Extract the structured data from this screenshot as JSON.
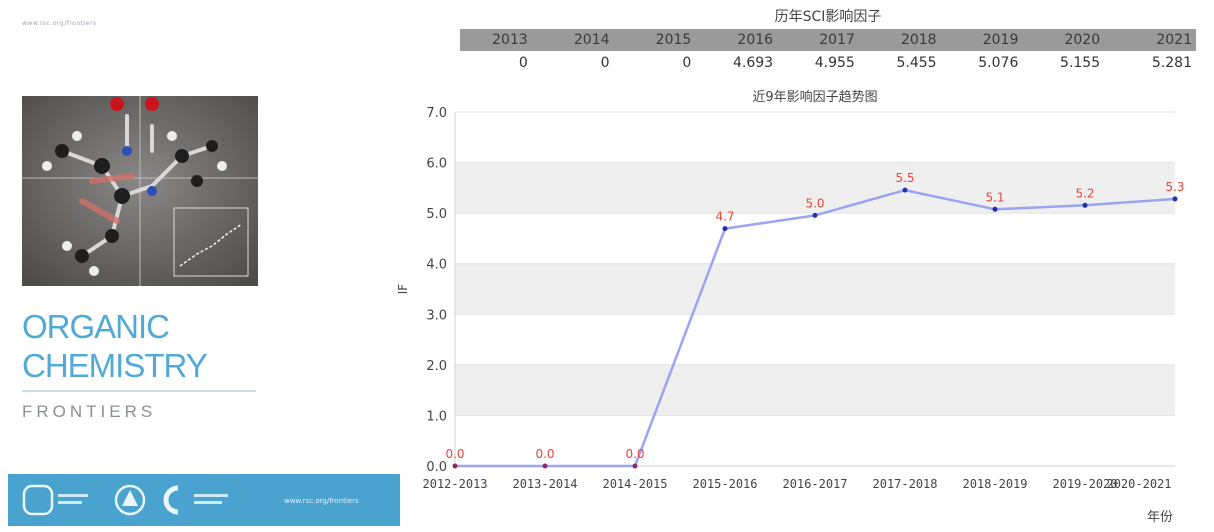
{
  "cover": {
    "tiny_text": "www.rsc.org/frontiers",
    "title_line1": "ORGANIC",
    "title_line2": "CHEMISTRY",
    "subtitle": "FRONTIERS",
    "colors": {
      "title": "#52a9d6",
      "footer": "#4aa3cf"
    }
  },
  "table": {
    "title": "历年SCI影响因子",
    "years": [
      "2013",
      "2014",
      "2015",
      "2016",
      "2017",
      "2018",
      "2019",
      "2020",
      "2021"
    ],
    "values": [
      "0",
      "0",
      "0",
      "4.693",
      "4.955",
      "5.455",
      "5.076",
      "5.155",
      "5.281"
    ]
  },
  "chart_data": {
    "type": "line",
    "title": "近9年影响因子趋势图",
    "xlabel": "年份",
    "ylabel": "IF",
    "categories": [
      "2012-2013",
      "2013-2014",
      "2014-2015",
      "2015-2016",
      "2016-2017",
      "2017-2018",
      "2018-2019",
      "2019-2020",
      "2020-2021"
    ],
    "series": [
      {
        "values": [
          0,
          0,
          0,
          4.693,
          4.955,
          5.455,
          5.076,
          5.155,
          5.281
        ],
        "labels": [
          "0.0",
          "0.0",
          "0.0",
          "4.7",
          "5.0",
          "5.5",
          "5.1",
          "5.2",
          "5.3"
        ],
        "color": "#9aa4f0"
      }
    ],
    "ylim": [
      0,
      7
    ],
    "yticks": [
      "0.0",
      "1.0",
      "2.0",
      "3.0",
      "4.0",
      "5.0",
      "6.0",
      "7.0"
    ],
    "grid": true,
    "colors": {
      "label": "#e8453c",
      "marker": "#2233aa",
      "band": "#efefef"
    }
  }
}
